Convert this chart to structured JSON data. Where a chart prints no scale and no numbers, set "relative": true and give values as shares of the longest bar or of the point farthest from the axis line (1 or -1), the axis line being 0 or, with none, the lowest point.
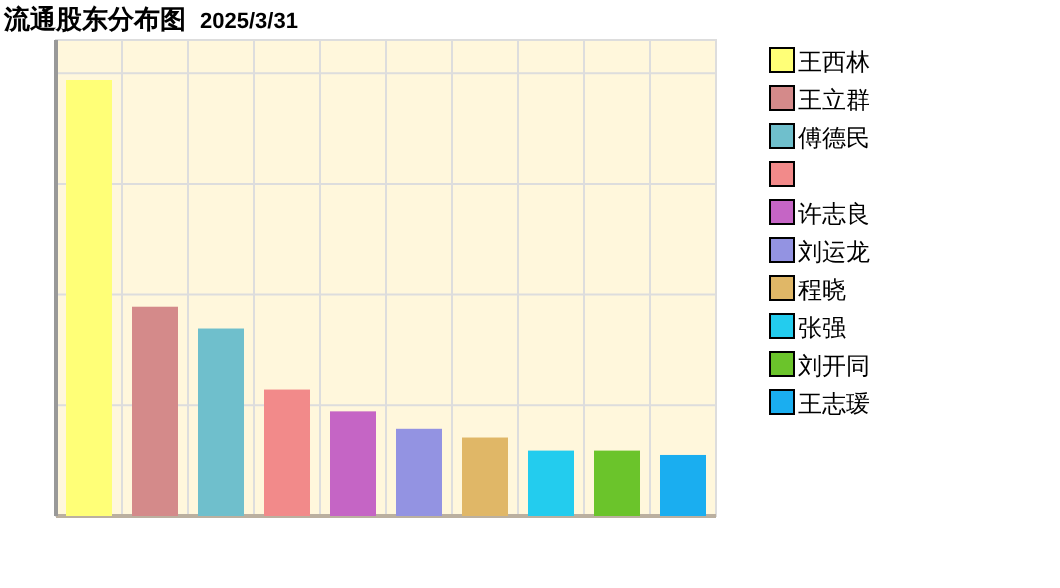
{
  "chart_data": {
    "type": "bar",
    "title": "流通股东分布图",
    "subtitle": "2025/3/31",
    "relative": true,
    "categories": [
      null,
      null,
      null,
      null,
      null,
      null,
      null,
      null,
      null,
      null
    ],
    "series": [
      {
        "name": "王西林",
        "color": "#ffff77",
        "values": [
          1,
          null,
          null,
          null,
          null,
          null,
          null,
          null,
          null,
          null
        ]
      },
      {
        "name": "王立群",
        "color": "#d48a8a",
        "values": [
          null,
          0.48,
          null,
          null,
          null,
          null,
          null,
          null,
          null,
          null
        ]
      },
      {
        "name": "傅德民",
        "color": "#6fbfcc",
        "values": [
          null,
          null,
          0.43,
          null,
          null,
          null,
          null,
          null,
          null,
          null
        ]
      },
      {
        "color": "#f28a8a",
        "values": [
          null,
          null,
          null,
          0.29,
          null,
          null,
          null,
          null,
          null,
          null
        ]
      },
      {
        "name": "许志良",
        "color": "#c565c5",
        "values": [
          null,
          null,
          null,
          null,
          0.24,
          null,
          null,
          null,
          null,
          null
        ]
      },
      {
        "name": "刘运龙",
        "color": "#9393e2",
        "values": [
          null,
          null,
          null,
          null,
          null,
          0.2,
          null,
          null,
          null,
          null
        ]
      },
      {
        "name": "程晓",
        "color": "#e0b767",
        "values": [
          null,
          null,
          null,
          null,
          null,
          null,
          0.18,
          null,
          null,
          null
        ]
      },
      {
        "name": "张强",
        "color": "#23ccee",
        "values": [
          null,
          null,
          null,
          null,
          null,
          null,
          null,
          0.15,
          null,
          null
        ]
      },
      {
        "name": "刘开同",
        "color": "#6bc42b",
        "values": [
          null,
          null,
          null,
          null,
          null,
          null,
          null,
          null,
          0.15,
          null
        ]
      },
      {
        "name": "王志瑗",
        "color": "#1aaef0",
        "values": [
          null,
          null,
          null,
          null,
          null,
          null,
          null,
          null,
          null,
          0.14
        ]
      }
    ],
    "grid": true,
    "legend": "right",
    "stacked": true
  }
}
